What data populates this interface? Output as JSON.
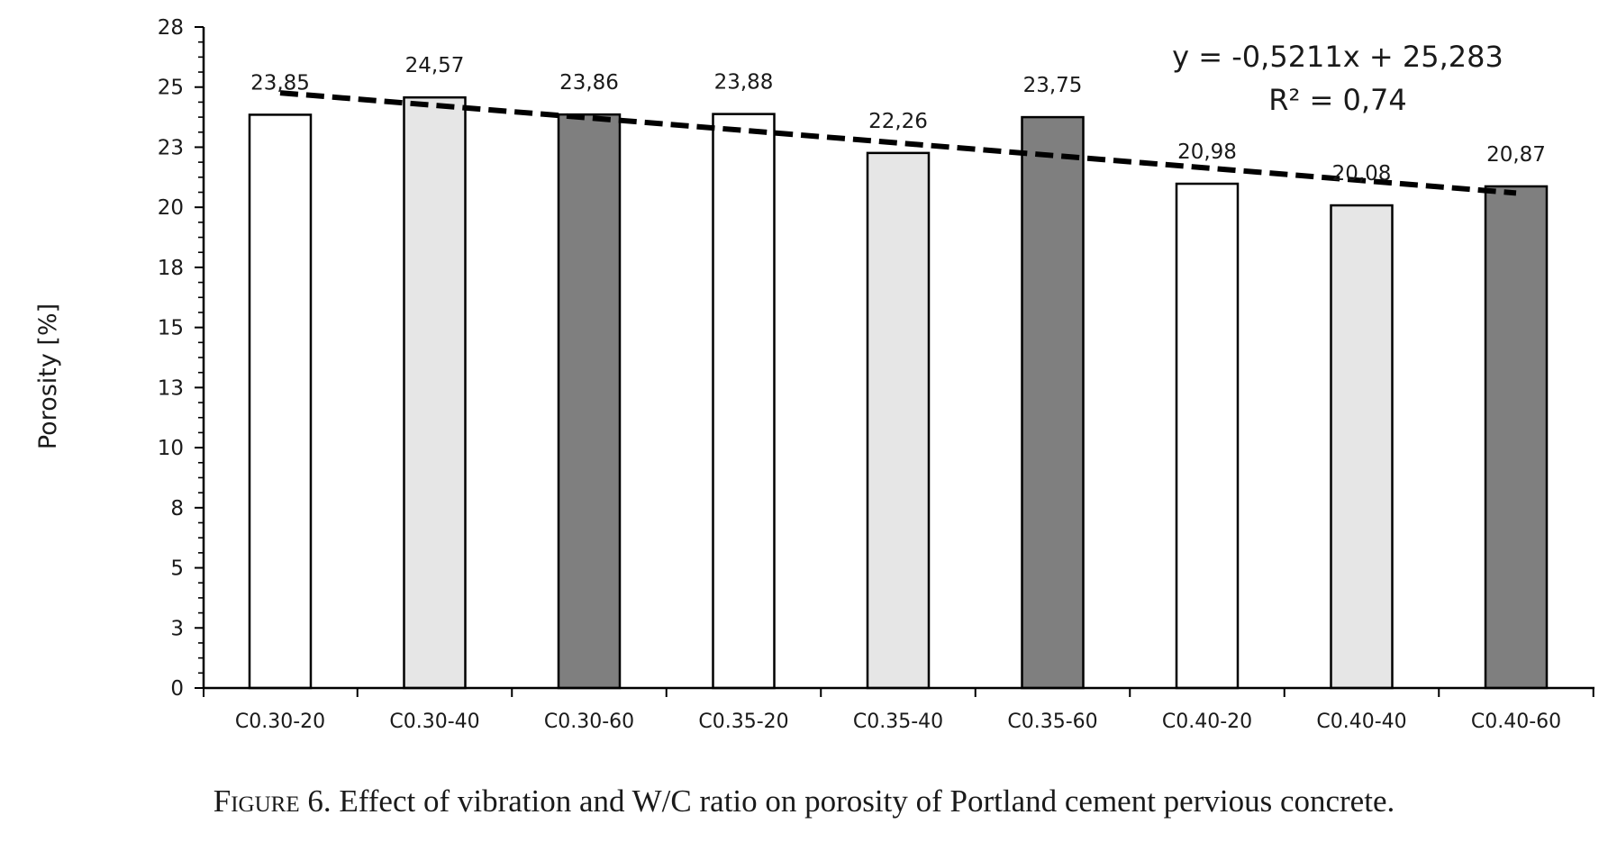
{
  "figure": {
    "caption_label": "Figure 6.",
    "caption_text": "Effect of vibration and W/C ratio on porosity of Portland cement pervious concrete."
  },
  "chart_data": {
    "type": "bar",
    "title": "",
    "xlabel": "",
    "ylabel": "Porosity [%]",
    "ylim": [
      0,
      27.5
    ],
    "y_ticks": [
      0,
      2.5,
      5,
      7.5,
      10,
      12.5,
      15,
      17.5,
      20,
      22.5,
      25,
      27.5
    ],
    "y_tick_labels": [
      "0",
      "3",
      "5",
      "8",
      "10",
      "13",
      "15",
      "18",
      "20",
      "23",
      "25",
      "28"
    ],
    "categories": [
      "C0.30-20",
      "C0.30-40",
      "C0.30-60",
      "C0.35-20",
      "C0.35-40",
      "C0.35-60",
      "C0.40-20",
      "C0.40-40",
      "C0.40-60"
    ],
    "values": [
      23.85,
      24.57,
      23.86,
      23.88,
      22.26,
      23.75,
      20.98,
      20.08,
      20.87
    ],
    "data_labels": [
      "23,85",
      "24,57",
      "23,86",
      "23,88",
      "22,26",
      "23,75",
      "20,98",
      "20,08",
      "20,87"
    ],
    "bar_colors": [
      "#ffffff",
      "#e6e6e6",
      "#7f7f7f",
      "#ffffff",
      "#e6e6e6",
      "#7f7f7f",
      "#ffffff",
      "#e6e6e6",
      "#7f7f7f"
    ],
    "grid": false,
    "trendline": {
      "type": "linear",
      "slope": -0.5211,
      "intercept": 25.283,
      "style": "dashed",
      "equation_label": "y = -0,5211x + 25,283",
      "r2_label": "R² = 0,74"
    }
  }
}
